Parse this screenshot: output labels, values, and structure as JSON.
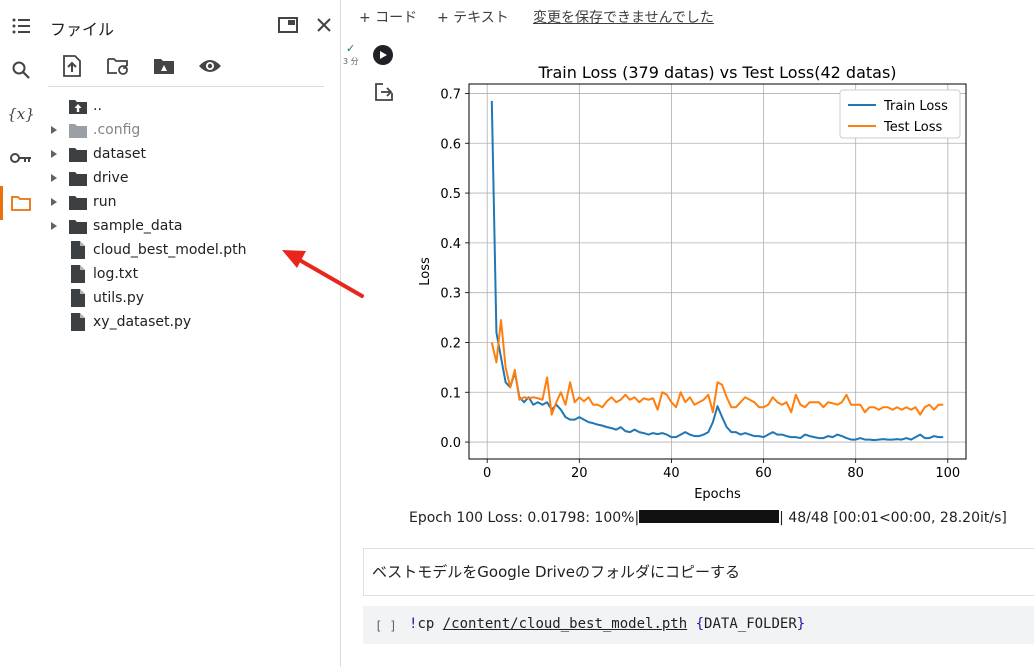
{
  "sidebar": {
    "title": "ファイル",
    "tree": [
      {
        "name": "..",
        "type": "up",
        "expandable": false,
        "dim": false
      },
      {
        "name": ".config",
        "type": "folder",
        "expandable": true,
        "dim": true
      },
      {
        "name": "dataset",
        "type": "folder",
        "expandable": true,
        "dim": false
      },
      {
        "name": "drive",
        "type": "folder",
        "expandable": true,
        "dim": false
      },
      {
        "name": "run",
        "type": "folder",
        "expandable": true,
        "dim": false
      },
      {
        "name": "sample_data",
        "type": "folder",
        "expandable": true,
        "dim": false
      },
      {
        "name": "cloud_best_model.pth",
        "type": "file",
        "expandable": false,
        "dim": false
      },
      {
        "name": "log.txt",
        "type": "file",
        "expandable": false,
        "dim": false
      },
      {
        "name": "utils.py",
        "type": "file",
        "expandable": false,
        "dim": false
      },
      {
        "name": "xy_dataset.py",
        "type": "file",
        "expandable": false,
        "dim": false
      }
    ]
  },
  "toolbar": {
    "add_code": "+ コード",
    "add_text": "+ テキスト",
    "save_status": "変更を保存できませんでした"
  },
  "cell": {
    "exec_time": "3 分"
  },
  "chart_data": {
    "type": "line",
    "title": "Train Loss (379 datas) vs Test Loss(42 datas)",
    "xlabel": "Epochs",
    "ylabel": "Loss",
    "xlim": [
      -3.95,
      103.95
    ],
    "ylim": [
      -0.034,
      0.719
    ],
    "xticks": [
      0,
      20,
      40,
      60,
      80,
      100
    ],
    "yticks": [
      0.0,
      0.1,
      0.2,
      0.3,
      0.4,
      0.5,
      0.6,
      0.7
    ],
    "grid": true,
    "legend": "top-right",
    "x_start": 1,
    "series": [
      {
        "name": "Train Loss",
        "color": "#1f77b4",
        "values": [
          0.685,
          0.22,
          0.17,
          0.12,
          0.11,
          0.14,
          0.09,
          0.08,
          0.09,
          0.075,
          0.08,
          0.075,
          0.08,
          0.065,
          0.075,
          0.065,
          0.05,
          0.045,
          0.045,
          0.05,
          0.045,
          0.04,
          0.038,
          0.035,
          0.033,
          0.03,
          0.028,
          0.025,
          0.03,
          0.022,
          0.02,
          0.025,
          0.02,
          0.018,
          0.015,
          0.018,
          0.016,
          0.018,
          0.015,
          0.01,
          0.01,
          0.015,
          0.02,
          0.015,
          0.012,
          0.012,
          0.015,
          0.02,
          0.04,
          0.072,
          0.05,
          0.03,
          0.02,
          0.02,
          0.015,
          0.018,
          0.015,
          0.012,
          0.012,
          0.01,
          0.015,
          0.02,
          0.015,
          0.015,
          0.012,
          0.01,
          0.01,
          0.008,
          0.015,
          0.012,
          0.01,
          0.008,
          0.008,
          0.012,
          0.01,
          0.015,
          0.012,
          0.008,
          0.005,
          0.005,
          0.008,
          0.005,
          0.005,
          0.004,
          0.005,
          0.006,
          0.005,
          0.005,
          0.006,
          0.005,
          0.008,
          0.005,
          0.01,
          0.015,
          0.008,
          0.008,
          0.012,
          0.01,
          0.01
        ]
      },
      {
        "name": "Test Loss",
        "color": "#ff7f0e",
        "values": [
          0.2,
          0.16,
          0.245,
          0.15,
          0.11,
          0.145,
          0.085,
          0.09,
          0.088,
          0.09,
          0.088,
          0.085,
          0.13,
          0.055,
          0.08,
          0.1,
          0.075,
          0.12,
          0.08,
          0.09,
          0.082,
          0.09,
          0.075,
          0.075,
          0.07,
          0.082,
          0.09,
          0.08,
          0.085,
          0.095,
          0.085,
          0.09,
          0.08,
          0.088,
          0.085,
          0.088,
          0.065,
          0.1,
          0.095,
          0.08,
          0.07,
          0.1,
          0.08,
          0.09,
          0.075,
          0.08,
          0.085,
          0.095,
          0.06,
          0.12,
          0.115,
          0.09,
          0.07,
          0.07,
          0.08,
          0.09,
          0.085,
          0.08,
          0.07,
          0.07,
          0.075,
          0.09,
          0.08,
          0.075,
          0.08,
          0.06,
          0.095,
          0.075,
          0.07,
          0.08,
          0.08,
          0.08,
          0.07,
          0.08,
          0.078,
          0.075,
          0.08,
          0.095,
          0.075,
          0.075,
          0.075,
          0.06,
          0.07,
          0.07,
          0.065,
          0.07,
          0.07,
          0.065,
          0.07,
          0.065,
          0.07,
          0.065,
          0.07,
          0.055,
          0.07,
          0.075,
          0.065,
          0.075,
          0.075
        ]
      }
    ]
  },
  "progress": {
    "prefix": "Epoch 100 Loss: 0.01798: 100%|",
    "fraction": 1.0,
    "suffix": "| 48/48 [00:01<00:00, 28.20it/s]"
  },
  "text_cell": {
    "text": "ベストモデルをGoogle Driveのフォルダにコピーする"
  },
  "code_cell": {
    "bracket": "[ ]",
    "bang": "!",
    "cmd": "cp ",
    "path": "/content/cloud_best_model.pth",
    "space": " ",
    "brace_open": "{",
    "var": "DATA_FOLDER",
    "brace_close": "}"
  }
}
